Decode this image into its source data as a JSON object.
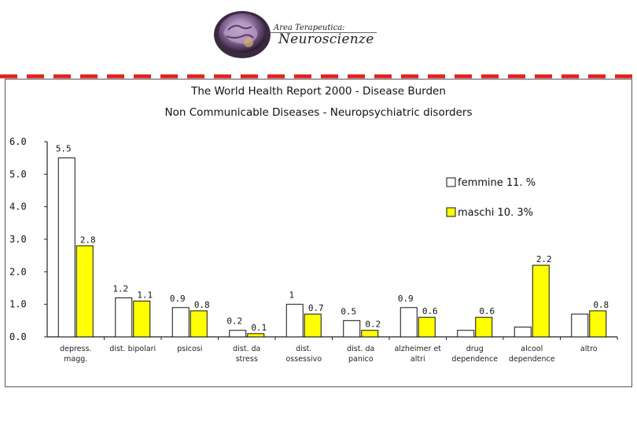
{
  "header": {
    "logo_subtitle": "Area Terapeutica:",
    "logo_title": "Neuroscienze"
  },
  "colors": {
    "female": "#ffffff",
    "male": "#ffff00",
    "dash": "#e02020",
    "axis": "#222222"
  },
  "chart_data": {
    "type": "bar",
    "title": "The World Health Report 2000 - Disease Burden",
    "subtitle": "Non Communicable Diseases - Neuropsychiatric disorders",
    "xlabel": "",
    "ylabel": "",
    "ylim": [
      0,
      6
    ],
    "yticks": [
      "0.0",
      "1.0",
      "2.0",
      "3.0",
      "4.0",
      "5.0",
      "6.0"
    ],
    "categories": [
      [
        "depress.",
        "magg."
      ],
      [
        "dist. bipolari"
      ],
      [
        "psicosi"
      ],
      [
        "dist. da",
        "stress"
      ],
      [
        "dist.",
        "ossessivo"
      ],
      [
        "dist. da",
        "panico"
      ],
      [
        "alzheimer et",
        "altri"
      ],
      [
        "drug",
        "dependence"
      ],
      [
        "alcool",
        "dependence"
      ],
      [
        "altro"
      ]
    ],
    "series": [
      {
        "name": "femmine 11. %",
        "values": [
          5.5,
          1.2,
          0.9,
          0.2,
          1,
          0.5,
          0.9,
          0.2,
          0.3,
          0.7
        ],
        "labels": [
          "5.5",
          "1.2",
          "0.9",
          "0.2",
          "1",
          "0.5",
          "0.9",
          "",
          "",
          ""
        ]
      },
      {
        "name": "maschi 10. 3%",
        "values": [
          2.8,
          1.1,
          0.8,
          0.1,
          0.7,
          0.2,
          0.6,
          0.6,
          2.2,
          0.8
        ],
        "labels": [
          "2.8",
          "1.1",
          "0.8",
          "0.1",
          "0.7",
          "0.2",
          "0.6",
          "0.6",
          "2.2",
          "0.8"
        ]
      }
    ],
    "legend": "right",
    "grid": false
  }
}
